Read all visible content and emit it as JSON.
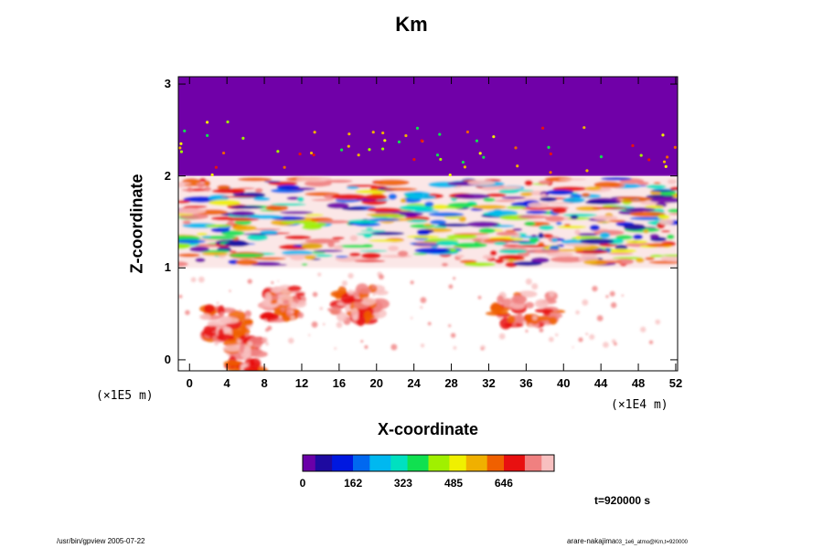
{
  "chart_data": {
    "type": "heatmap",
    "title": "Km",
    "xlabel": "X-coordinate",
    "ylabel": "Z-coordinate",
    "x_scale_note": "(×1E4 m)",
    "z_scale_note": "(×1E5 m)",
    "x_ticks": [
      "0",
      "4",
      "8",
      "12",
      "16",
      "20",
      "24",
      "28",
      "32",
      "36",
      "40",
      "44",
      "48",
      "52"
    ],
    "z_ticks": [
      "0",
      "1",
      "2",
      "3"
    ],
    "xlim": [
      -1.2,
      52.2
    ],
    "zlim": [
      -0.12,
      3.08
    ],
    "colorbar": {
      "range": [
        0,
        808
      ],
      "ticks": [
        "0",
        "162",
        "323",
        "485",
        "646"
      ],
      "colors": [
        "#6a00a8",
        "#1e0aa0",
        "#0018e0",
        "#0068f0",
        "#00b8f0",
        "#00e0c0",
        "#10e050",
        "#a0f000",
        "#f0f000",
        "#f0b000",
        "#f06000",
        "#e81010",
        "#f08080",
        "#f8c0c0"
      ]
    },
    "regions": [
      {
        "name": "upper uniform layer",
        "z": [
          2.0,
          3.0
        ],
        "color": "#7000a8"
      },
      {
        "name": "turbulent layer",
        "z": [
          1.0,
          2.0
        ]
      },
      {
        "name": "lower convective plumes",
        "z": [
          -0.12,
          1.0
        ]
      }
    ],
    "time_label": "t=920000 s"
  },
  "footer": {
    "left": "/usr/bin/gpview 2005-07-22",
    "right_main": "arare-nakajima",
    "right_sub": "03_1e6_atmo@Km,t=920000"
  }
}
